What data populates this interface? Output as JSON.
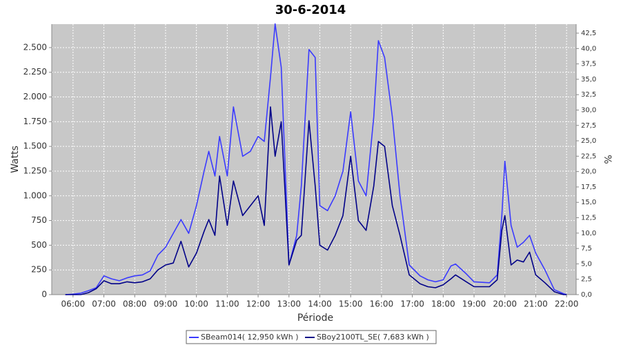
{
  "chart_data": {
    "type": "line",
    "title": "30-6-2014",
    "xlabel": "Période",
    "ylabel": "Watts",
    "y2label": "%",
    "x": [
      5.75,
      6,
      6.25,
      6.5,
      6.75,
      7,
      7.25,
      7.5,
      7.75,
      8,
      8.25,
      8.5,
      8.75,
      9,
      9.25,
      9.5,
      9.75,
      10,
      10.25,
      10.4,
      10.6,
      10.75,
      11,
      11.2,
      11.5,
      11.75,
      12,
      12.2,
      12.4,
      12.55,
      12.75,
      13,
      13.25,
      13.4,
      13.65,
      13.85,
      14,
      14.25,
      14.5,
      14.75,
      15,
      15.25,
      15.5,
      15.75,
      15.9,
      16.1,
      16.35,
      16.6,
      16.9,
      17.25,
      17.5,
      17.75,
      18,
      18.25,
      18.4,
      18.75,
      19,
      19.5,
      19.75,
      19.9,
      20,
      20.2,
      20.4,
      20.6,
      20.8,
      21,
      21.3,
      21.6,
      21.9,
      22
    ],
    "series": [
      {
        "name": "SBeam014( 12,950 kWh )",
        "color": "#3a3aff",
        "values": [
          0,
          5,
          15,
          40,
          70,
          190,
          160,
          140,
          170,
          190,
          200,
          240,
          400,
          480,
          620,
          760,
          620,
          900,
          1250,
          1450,
          1200,
          1600,
          1200,
          1900,
          1400,
          1450,
          1600,
          1550,
          2200,
          2740,
          2300,
          300,
          600,
          1100,
          2480,
          2400,
          900,
          850,
          1000,
          1250,
          1850,
          1150,
          1000,
          1800,
          2570,
          2400,
          1800,
          1000,
          300,
          190,
          150,
          130,
          150,
          290,
          310,
          210,
          130,
          120,
          200,
          800,
          1350,
          700,
          480,
          530,
          600,
          420,
          250,
          50,
          10,
          0
        ]
      },
      {
        "name": "SBoy2100TL_SE( 7,683 kWh )",
        "color": "#000088",
        "values": [
          0,
          0,
          0,
          20,
          60,
          140,
          110,
          110,
          130,
          120,
          130,
          160,
          250,
          300,
          320,
          540,
          280,
          420,
          640,
          760,
          600,
          1200,
          700,
          1150,
          800,
          900,
          1000,
          700,
          1900,
          1400,
          1750,
          300,
          550,
          600,
          1760,
          1100,
          500,
          450,
          600,
          800,
          1400,
          750,
          650,
          1100,
          1550,
          1500,
          900,
          600,
          200,
          110,
          80,
          70,
          100,
          160,
          200,
          130,
          80,
          80,
          150,
          650,
          800,
          300,
          350,
          330,
          430,
          200,
          120,
          30,
          0,
          0
        ]
      }
    ],
    "xlim": [
      5.31,
      22.31
    ],
    "xticks": [
      {
        "value": 6,
        "label": "06:00"
      },
      {
        "value": 7,
        "label": "07:00"
      },
      {
        "value": 8,
        "label": "08:00"
      },
      {
        "value": 9,
        "label": "09:00"
      },
      {
        "value": 10,
        "label": "10:00"
      },
      {
        "value": 11,
        "label": "11:00"
      },
      {
        "value": 12,
        "label": "12:00"
      },
      {
        "value": 13,
        "label": "13:00"
      },
      {
        "value": 14,
        "label": "14:00"
      },
      {
        "value": 15,
        "label": "15:00"
      },
      {
        "value": 16,
        "label": "16:00"
      },
      {
        "value": 17,
        "label": "17:00"
      },
      {
        "value": 18,
        "label": "18:00"
      },
      {
        "value": 19,
        "label": "19:00"
      },
      {
        "value": 20,
        "label": "20:00"
      },
      {
        "value": 21,
        "label": "21:00"
      },
      {
        "value": 22,
        "label": "22:00"
      }
    ],
    "ylim": [
      0,
      2737
    ],
    "yticks": [
      0,
      250,
      500,
      750,
      {
        "value": 1000,
        "label": "1.000"
      },
      {
        "value": 1250,
        "label": "1.250"
      },
      {
        "value": 1500,
        "label": "1.500"
      },
      {
        "value": 1750,
        "label": "1.750"
      },
      {
        "value": 2000,
        "label": "2.000"
      },
      {
        "value": 2250,
        "label": "2.250"
      },
      {
        "value": 2500,
        "label": "2.500"
      }
    ],
    "y2lim": [
      0,
      43.96
    ],
    "y2ticks": [
      {
        "value": 0,
        "label": "0,0"
      },
      {
        "value": 2.5,
        "label": "2,5"
      },
      {
        "value": 5,
        "label": "5,0"
      },
      {
        "value": 7.5,
        "label": "7,5"
      },
      {
        "value": 10,
        "label": "10,0"
      },
      {
        "value": 12.5,
        "label": "12,5"
      },
      {
        "value": 15,
        "label": "15,0"
      },
      {
        "value": 17.5,
        "label": "17,5"
      },
      {
        "value": 20,
        "label": "20,0"
      },
      {
        "value": 22.5,
        "label": "22,5"
      },
      {
        "value": 25,
        "label": "25,0"
      },
      {
        "value": 27.5,
        "label": "27,5"
      },
      {
        "value": 30,
        "label": "30,0"
      },
      {
        "value": 32.5,
        "label": "32,5"
      },
      {
        "value": 35,
        "label": "35,0"
      },
      {
        "value": 37.5,
        "label": "37,5"
      },
      {
        "value": 40,
        "label": "40,0"
      },
      {
        "value": 42.5,
        "label": "42,5"
      }
    ],
    "grid": true
  }
}
